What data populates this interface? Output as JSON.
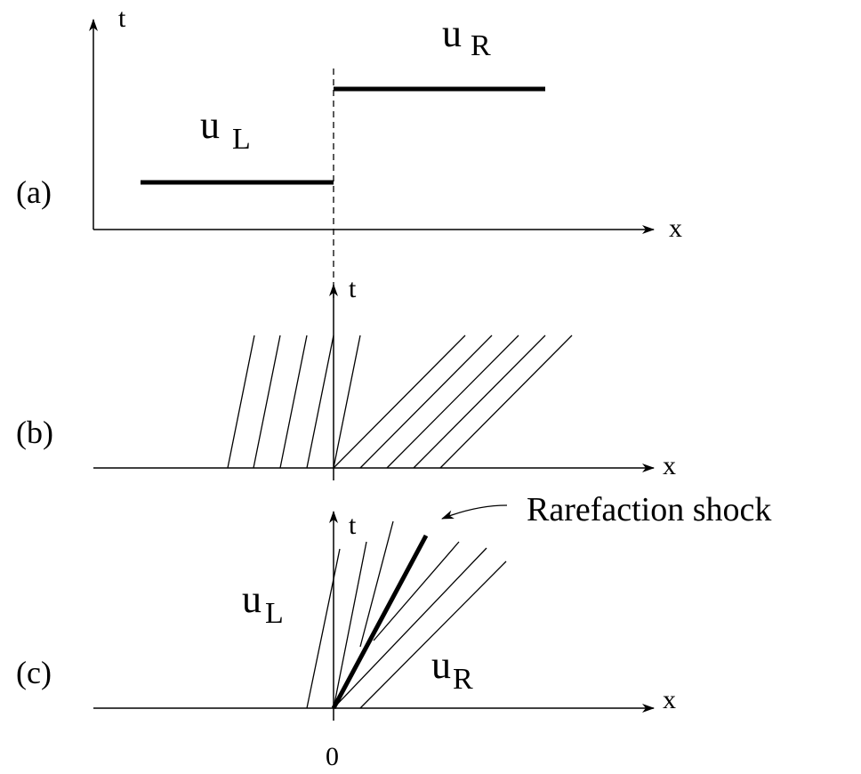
{
  "panel_a": {
    "label": "(a)",
    "t_axis": "t",
    "x_axis": "x",
    "left_state": "u",
    "left_sub": "L",
    "right_state": "u",
    "right_sub": "R"
  },
  "panel_b": {
    "label": "(b)",
    "t_axis": "t",
    "x_axis": "x"
  },
  "panel_c": {
    "label": "(c)",
    "t_axis": "t",
    "x_axis": "x",
    "left_state": "u",
    "left_sub": "L",
    "right_state": "u",
    "right_sub": "R",
    "annotation": "Rarefaction shock"
  },
  "origin_tick": "0"
}
